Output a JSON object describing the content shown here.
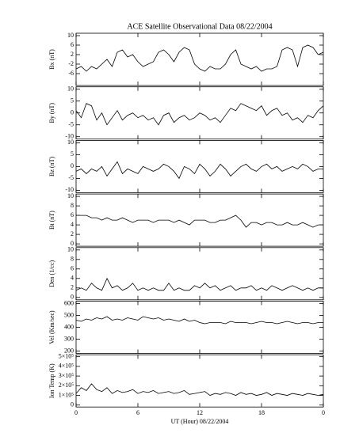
{
  "chart_data": [
    {
      "type": "line",
      "title": "ACE Satellite Observational Data   08/22/2004",
      "ylabel": "Bx (nT)",
      "color": "#000000",
      "x": [
        0,
        0.5,
        1,
        1.5,
        2,
        2.5,
        3,
        3.5,
        4,
        4.5,
        5,
        5.5,
        6,
        6.5,
        7,
        7.5,
        8,
        8.5,
        9,
        9.5,
        10,
        10.5,
        11,
        11.5,
        12,
        12.5,
        13,
        13.5,
        14,
        14.5,
        15,
        15.5,
        16,
        16.5,
        17,
        17.5,
        18,
        18.5,
        19,
        19.5,
        20,
        20.5,
        21,
        21.5,
        22,
        22.5,
        23,
        23.5,
        24
      ],
      "values": [
        -4,
        -3,
        -5,
        -3,
        -4,
        -2,
        0,
        -3,
        3,
        4,
        1,
        2,
        -1,
        -3,
        -2,
        -1,
        3,
        4,
        2,
        -1,
        3,
        5,
        4,
        -2,
        -4,
        -5,
        -3,
        -4,
        -4,
        -2,
        2,
        4,
        -2,
        -3,
        -4,
        -3,
        -5,
        -4,
        -4,
        -3,
        4,
        5,
        4,
        -3,
        5,
        6,
        5,
        2,
        3
      ],
      "xlim": [
        0,
        24
      ],
      "ylim": [
        -11,
        11
      ],
      "yticks": [
        10,
        6,
        2,
        -2,
        -6
      ]
    },
    {
      "type": "line",
      "ylabel": "By (nT)",
      "color": "#000000",
      "x": [
        0,
        0.5,
        1,
        1.5,
        2,
        2.5,
        3,
        3.5,
        4,
        4.5,
        5,
        5.5,
        6,
        6.5,
        7,
        7.5,
        8,
        8.5,
        9,
        9.5,
        10,
        10.5,
        11,
        11.5,
        12,
        12.5,
        13,
        13.5,
        14,
        14.5,
        15,
        15.5,
        16,
        16.5,
        17,
        17.5,
        18,
        18.5,
        19,
        19.5,
        20,
        20.5,
        21,
        21.5,
        22,
        22.5,
        23,
        23.5,
        24
      ],
      "values": [
        1,
        -2,
        4,
        3,
        -3,
        0,
        -5,
        -2,
        1,
        -3,
        -1,
        0,
        -2,
        -1,
        -3,
        -2,
        -5,
        -1,
        0,
        -4,
        -2,
        -1,
        -3,
        -2,
        0,
        -1,
        -3,
        -2,
        -4,
        -1,
        2,
        1,
        4,
        3,
        2,
        1,
        3,
        -1,
        1,
        2,
        -1,
        0,
        -3,
        -2,
        -4,
        -1,
        -2,
        1,
        3
      ],
      "xlim": [
        0,
        24
      ],
      "ylim": [
        -11,
        11
      ],
      "yticks": [
        10,
        5,
        0,
        -5,
        -10
      ]
    },
    {
      "type": "line",
      "ylabel": "Bz (nT)",
      "color": "#000000",
      "x": [
        0,
        0.5,
        1,
        1.5,
        2,
        2.5,
        3,
        3.5,
        4,
        4.5,
        5,
        5.5,
        6,
        6.5,
        7,
        7.5,
        8,
        8.5,
        9,
        9.5,
        10,
        10.5,
        11,
        11.5,
        12,
        12.5,
        13,
        13.5,
        14,
        14.5,
        15,
        15.5,
        16,
        16.5,
        17,
        17.5,
        18,
        18.5,
        19,
        19.5,
        20,
        20.5,
        21,
        21.5,
        22,
        22.5,
        23,
        23.5,
        24
      ],
      "values": [
        -2,
        -1,
        -3,
        -1,
        -2,
        0,
        -4,
        -1,
        2,
        -3,
        -1,
        -2,
        -3,
        0,
        -1,
        -2,
        -1,
        1,
        0,
        -2,
        -5,
        0,
        -1,
        -3,
        1,
        -1,
        -4,
        -2,
        1,
        -1,
        -4,
        -2,
        0,
        1,
        -1,
        -2,
        0,
        1,
        -1,
        0,
        -2,
        -1,
        0,
        -1,
        1,
        0,
        -2,
        -1,
        -1
      ],
      "xlim": [
        0,
        24
      ],
      "ylim": [
        -11,
        11
      ],
      "yticks": [
        10,
        5,
        0,
        -5,
        -10
      ]
    },
    {
      "type": "line",
      "ylabel": "Bt (nT)",
      "color": "#000000",
      "x": [
        0,
        0.5,
        1,
        1.5,
        2,
        2.5,
        3,
        3.5,
        4,
        4.5,
        5,
        5.5,
        6,
        6.5,
        7,
        7.5,
        8,
        8.5,
        9,
        9.5,
        10,
        10.5,
        11,
        11.5,
        12,
        12.5,
        13,
        13.5,
        14,
        14.5,
        15,
        15.5,
        16,
        16.5,
        17,
        17.5,
        18,
        18.5,
        19,
        19.5,
        20,
        20.5,
        21,
        21.5,
        22,
        22.5,
        23,
        23.5,
        24
      ],
      "values": [
        6,
        6,
        6,
        5.5,
        5.5,
        5,
        5.5,
        5,
        5,
        5.5,
        5,
        4.5,
        5,
        5,
        5,
        4.5,
        5,
        5,
        5,
        4.5,
        5,
        4.5,
        4,
        5,
        5,
        5,
        4.5,
        4.5,
        5,
        5,
        5.5,
        6,
        5,
        3.5,
        4.5,
        4.5,
        4,
        4.5,
        4.5,
        4,
        4,
        4.5,
        4,
        4,
        4.5,
        4,
        3.5,
        4,
        4
      ],
      "xlim": [
        0,
        24
      ],
      "ylim": [
        -0.5,
        10.5
      ],
      "yticks": [
        10,
        8,
        6,
        4,
        2,
        0
      ]
    },
    {
      "type": "line",
      "ylabel": "Den (1/cc)",
      "color": "#000000",
      "x": [
        0,
        0.5,
        1,
        1.5,
        2,
        2.5,
        3,
        3.5,
        4,
        4.5,
        5,
        5.5,
        6,
        6.5,
        7,
        7.5,
        8,
        8.5,
        9,
        9.5,
        10,
        10.5,
        11,
        11.5,
        12,
        12.5,
        13,
        13.5,
        14,
        14.5,
        15,
        15.5,
        16,
        16.5,
        17,
        17.5,
        18,
        18.5,
        19,
        19.5,
        20,
        20.5,
        21,
        21.5,
        22,
        22.5,
        23,
        23.5,
        24
      ],
      "values": [
        1.5,
        2,
        1.5,
        3,
        2,
        1.5,
        4,
        2,
        2.5,
        1.5,
        2,
        3,
        1.5,
        2,
        1.5,
        2,
        1.5,
        1.5,
        3,
        1.5,
        2,
        1.5,
        1.5,
        2.5,
        2,
        3,
        2,
        2.5,
        1.5,
        2,
        2.5,
        1.5,
        2,
        2,
        2.5,
        1.5,
        2,
        1.5,
        2.5,
        2,
        1.5,
        2,
        2.5,
        2,
        1.5,
        2,
        1.5,
        2,
        2
      ],
      "xlim": [
        0,
        24
      ],
      "ylim": [
        -0.5,
        10.5
      ],
      "yticks": [
        10,
        8,
        6,
        4,
        2,
        0
      ]
    },
    {
      "type": "line",
      "ylabel": "Vel (Km/sec)",
      "color": "#000000",
      "x": [
        0,
        0.5,
        1,
        1.5,
        2,
        2.5,
        3,
        3.5,
        4,
        4.5,
        5,
        5.5,
        6,
        6.5,
        7,
        7.5,
        8,
        8.5,
        9,
        9.5,
        10,
        10.5,
        11,
        11.5,
        12,
        12.5,
        13,
        13.5,
        14,
        14.5,
        15,
        15.5,
        16,
        16.5,
        17,
        17.5,
        18,
        18.5,
        19,
        19.5,
        20,
        20.5,
        21,
        21.5,
        22,
        22.5,
        23,
        23.5,
        24
      ],
      "values": [
        460,
        450,
        470,
        460,
        480,
        470,
        490,
        460,
        470,
        460,
        480,
        470,
        460,
        490,
        480,
        470,
        480,
        460,
        470,
        460,
        450,
        470,
        450,
        460,
        440,
        430,
        440,
        440,
        440,
        430,
        450,
        440,
        440,
        440,
        430,
        440,
        450,
        440,
        440,
        430,
        440,
        450,
        440,
        430,
        440,
        440,
        430,
        440,
        440
      ],
      "xlim": [
        0,
        24
      ],
      "ylim": [
        180,
        620
      ],
      "yticks": [
        600,
        500,
        400,
        300,
        200
      ]
    },
    {
      "type": "line",
      "ylabel": "Ion Temp (K)",
      "xlabel": "UT (Hour)   08/22/2004",
      "color": "#000000",
      "x": [
        0,
        0.5,
        1,
        1.5,
        2,
        2.5,
        3,
        3.5,
        4,
        4.5,
        5,
        5.5,
        6,
        6.5,
        7,
        7.5,
        8,
        8.5,
        9,
        9.5,
        10,
        10.5,
        11,
        11.5,
        12,
        12.5,
        13,
        13.5,
        14,
        14.5,
        15,
        15.5,
        16,
        16.5,
        17,
        17.5,
        18,
        18.5,
        19,
        19.5,
        20,
        20.5,
        21,
        21.5,
        22,
        22.5,
        23,
        23.5,
        24
      ],
      "values": [
        120000,
        180000,
        150000,
        220000,
        160000,
        140000,
        180000,
        120000,
        150000,
        130000,
        140000,
        160000,
        120000,
        140000,
        130000,
        150000,
        120000,
        130000,
        140000,
        120000,
        130000,
        150000,
        110000,
        120000,
        130000,
        140000,
        100000,
        120000,
        110000,
        130000,
        120000,
        100000,
        130000,
        110000,
        120000,
        100000,
        110000,
        130000,
        100000,
        120000,
        110000,
        100000,
        120000,
        110000,
        100000,
        120000,
        110000,
        100000,
        110000
      ],
      "xlim": [
        0,
        24
      ],
      "ylim": [
        -20000,
        520000
      ],
      "yticks": [
        {
          "value": 500000,
          "label": "5×10⁵"
        },
        {
          "value": 400000,
          "label": "4×10⁵"
        },
        {
          "value": 300000,
          "label": "3×10⁵"
        },
        {
          "value": 200000,
          "label": "2×10⁵"
        },
        {
          "value": 100000,
          "label": "1×10⁵"
        },
        0
      ],
      "xticks": [
        0,
        6,
        12,
        18,
        {
          "value": 24,
          "label": "0"
        }
      ]
    }
  ]
}
